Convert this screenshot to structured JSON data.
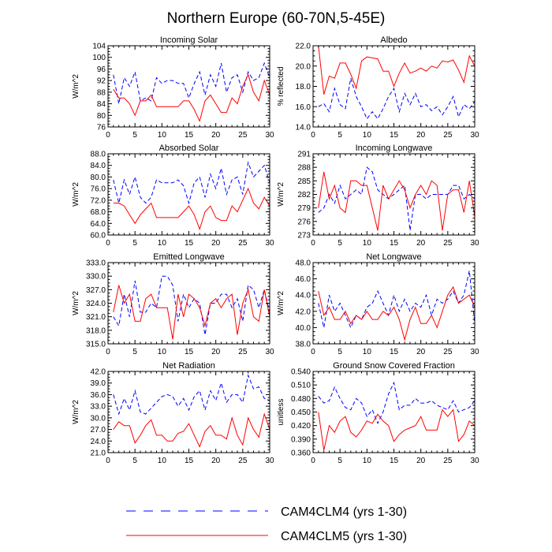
{
  "figure": {
    "title": "Northern Europe (60-70N,5-45E)",
    "legend": [
      {
        "label": "CAM4CLM4 (yrs 1-30)",
        "color": "#0000ff",
        "style": "dashed"
      },
      {
        "label": "CAM4CLM5 (yrs 1-30)",
        "color": "#ff0000",
        "style": "solid"
      }
    ]
  },
  "chart_data": [
    {
      "type": "line",
      "title": "Incoming Solar",
      "ylabel": "W/m^2",
      "xlim": [
        0,
        30
      ],
      "ylim": [
        76,
        104
      ],
      "xticks": [
        "0",
        "5",
        "10",
        "15",
        "20",
        "25",
        "30"
      ],
      "yticks": [
        "76",
        "80",
        "84",
        "88",
        "92",
        "96",
        "100",
        "104"
      ],
      "x": [
        1,
        2,
        3,
        4,
        5,
        6,
        7,
        8,
        9,
        10,
        11,
        12,
        13,
        14,
        15,
        16,
        17,
        18,
        19,
        20,
        21,
        22,
        23,
        24,
        25,
        26,
        27,
        28,
        29,
        30
      ],
      "series": [
        {
          "name": "CAM4CLM4 (yrs 1-30)",
          "values": [
            94,
            84,
            93,
            90,
            95,
            85,
            86,
            85,
            93,
            91,
            92,
            92,
            91,
            91,
            86,
            91,
            95,
            87,
            94,
            90,
            98,
            88,
            93,
            94,
            88,
            95,
            92,
            93,
            98,
            93
          ]
        },
        {
          "name": "CAM4CLM5 (yrs 1-30)",
          "values": [
            89,
            86,
            86,
            84,
            80,
            85,
            85,
            87,
            83,
            83,
            83,
            83,
            83,
            85,
            85,
            82,
            78,
            85,
            87,
            84,
            81,
            81,
            86,
            84,
            90,
            94,
            88,
            85,
            92,
            87
          ]
        }
      ]
    },
    {
      "type": "line",
      "title": "Albedo",
      "ylabel": "% reflected",
      "xlim": [
        0,
        30
      ],
      "ylim": [
        14.0,
        22.0
      ],
      "xticks": [
        "0",
        "5",
        "10",
        "15",
        "20",
        "25",
        "30"
      ],
      "yticks": [
        "14.0",
        "16.0",
        "18.0",
        "20.0",
        "22.0"
      ],
      "x": [
        1,
        2,
        3,
        4,
        5,
        6,
        7,
        8,
        9,
        10,
        11,
        12,
        13,
        14,
        15,
        16,
        17,
        18,
        19,
        20,
        21,
        22,
        23,
        24,
        25,
        26,
        27,
        28,
        29,
        30
      ],
      "series": [
        {
          "name": "CAM4CLM4 (yrs 1-30)",
          "values": [
            16.0,
            16.3,
            15.5,
            17.8,
            16.2,
            15.8,
            18.8,
            17.0,
            16.0,
            14.8,
            15.5,
            14.8,
            15.8,
            17.0,
            17.8,
            15.5,
            17.3,
            16.2,
            17.3,
            16.0,
            16.2,
            15.6,
            16.0,
            15.2,
            16.0,
            17.0,
            15.0,
            16.2,
            15.8,
            16.5
          ]
        },
        {
          "name": "CAM4CLM5 (yrs 1-30)",
          "values": [
            22.0,
            17.2,
            19.0,
            18.8,
            20.3,
            20.3,
            19.2,
            17.8,
            20.5,
            20.9,
            20.8,
            20.7,
            19.5,
            19.5,
            18.0,
            19.3,
            20.3,
            19.3,
            19.5,
            19.8,
            19.5,
            20.0,
            19.8,
            20.5,
            20.4,
            20.6,
            19.6,
            18.4,
            21.0,
            20.0
          ]
        }
      ]
    },
    {
      "type": "line",
      "title": "Absorbed Solar",
      "ylabel": "W/m^2",
      "xlim": [
        0,
        30
      ],
      "ylim": [
        60.0,
        88.0
      ],
      "xticks": [
        "0",
        "5",
        "10",
        "15",
        "20",
        "25",
        "30"
      ],
      "yticks": [
        "60.0",
        "64.0",
        "68.0",
        "72.0",
        "76.0",
        "80.0",
        "84.0",
        "88.0"
      ],
      "x": [
        1,
        2,
        3,
        4,
        5,
        6,
        7,
        8,
        9,
        10,
        11,
        12,
        13,
        14,
        15,
        16,
        17,
        18,
        19,
        20,
        21,
        22,
        23,
        24,
        25,
        26,
        27,
        28,
        29,
        30
      ],
      "series": [
        {
          "name": "CAM4CLM4 (yrs 1-30)",
          "values": [
            79,
            71,
            79,
            74,
            80,
            73,
            71,
            73,
            79,
            78,
            78,
            78,
            79,
            77,
            71,
            78,
            80,
            73,
            81,
            76,
            83,
            74,
            79,
            80,
            74,
            85,
            80,
            82,
            84,
            78
          ]
        },
        {
          "name": "CAM4CLM5 (yrs 1-30)",
          "values": [
            71,
            71,
            70,
            67,
            64,
            67,
            69,
            71,
            66,
            66,
            66,
            66,
            66,
            68,
            70,
            67,
            62,
            68,
            70,
            66,
            65,
            65,
            70,
            68,
            72,
            76,
            71,
            69,
            73,
            70
          ]
        }
      ]
    },
    {
      "type": "line",
      "title": "Incoming Longwave",
      "ylabel": "W/m^2",
      "xlim": [
        0,
        30
      ],
      "ylim": [
        273,
        291
      ],
      "xticks": [
        "0",
        "5",
        "10",
        "15",
        "20",
        "25",
        "30"
      ],
      "yticks": [
        "273",
        "276",
        "279",
        "282",
        "285",
        "288",
        "291"
      ],
      "x": [
        1,
        2,
        3,
        4,
        5,
        6,
        7,
        8,
        9,
        10,
        11,
        12,
        13,
        14,
        15,
        16,
        17,
        18,
        19,
        20,
        21,
        22,
        23,
        24,
        25,
        26,
        27,
        28,
        29,
        30
      ],
      "series": [
        {
          "name": "CAM4CLM4 (yrs 1-30)",
          "values": [
            278,
            279,
            282,
            280,
            284,
            281,
            282,
            283,
            282,
            288,
            287,
            283,
            282,
            281,
            282,
            283,
            284,
            274,
            282,
            282,
            281,
            282,
            282,
            282,
            282,
            284,
            284,
            281,
            282,
            281
          ]
        },
        {
          "name": "CAM4CLM5 (yrs 1-30)",
          "values": [
            279,
            287,
            281,
            284,
            279,
            278,
            285,
            285,
            284,
            284,
            279,
            274,
            284,
            281,
            283,
            285,
            283,
            279,
            282,
            284,
            282,
            285,
            284,
            274,
            282,
            283,
            283,
            278,
            285,
            277
          ]
        }
      ]
    },
    {
      "type": "line",
      "title": "Emitted Longwave",
      "ylabel": "W/m^2",
      "xlim": [
        0,
        30
      ],
      "ylim": [
        315.0,
        333.0
      ],
      "xticks": [
        "0",
        "5",
        "10",
        "15",
        "20",
        "25",
        "30"
      ],
      "yticks": [
        "315.0",
        "318.0",
        "321.0",
        "324.0",
        "327.0",
        "330.0",
        "333.0"
      ],
      "x": [
        1,
        2,
        3,
        4,
        5,
        6,
        7,
        8,
        9,
        10,
        11,
        12,
        13,
        14,
        15,
        16,
        17,
        18,
        19,
        20,
        21,
        22,
        23,
        24,
        25,
        26,
        27,
        28,
        29,
        30
      ],
      "series": [
        {
          "name": "CAM4CLM4 (yrs 1-30)",
          "values": [
            321,
            319,
            326,
            321,
            329,
            322,
            322,
            324,
            323,
            330,
            330,
            328,
            320,
            326,
            323,
            325,
            324,
            317,
            324,
            324,
            326,
            326,
            323,
            325,
            320,
            328,
            327,
            323,
            327,
            322
          ]
        },
        {
          "name": "CAM4CLM5 (yrs 1-30)",
          "values": [
            322,
            328,
            324,
            326,
            320,
            320,
            325,
            326,
            323,
            323,
            323,
            316,
            326,
            321,
            326,
            325,
            323,
            319,
            324,
            325,
            323,
            325,
            326,
            317,
            324,
            327,
            321,
            320,
            327,
            321
          ]
        }
      ]
    },
    {
      "type": "line",
      "title": "Net Longwave",
      "ylabel": "W/m^2",
      "xlim": [
        0,
        30
      ],
      "ylim": [
        38.0,
        48.0
      ],
      "xticks": [
        "0",
        "5",
        "10",
        "15",
        "20",
        "25",
        "30"
      ],
      "yticks": [
        "38.0",
        "40.0",
        "42.0",
        "44.0",
        "46.0",
        "48.0"
      ],
      "x": [
        1,
        2,
        3,
        4,
        5,
        6,
        7,
        8,
        9,
        10,
        11,
        12,
        13,
        14,
        15,
        16,
        17,
        18,
        19,
        20,
        21,
        22,
        23,
        24,
        25,
        26,
        27,
        28,
        29,
        30
      ],
      "series": [
        {
          "name": "CAM4CLM4 (yrs 1-30)",
          "values": [
            43.0,
            40.0,
            44.0,
            42.0,
            43.0,
            41.5,
            40.0,
            41.5,
            41.0,
            42.5,
            43.0,
            44.5,
            43.0,
            41.5,
            44.0,
            42.0,
            43.5,
            42.0,
            43.0,
            42.5,
            44.0,
            41.5,
            43.5,
            43.0,
            43.5,
            44.5,
            43.0,
            44.0,
            47.0,
            40.5
          ]
        },
        {
          "name": "CAM4CLM5 (yrs 1-30)",
          "values": [
            44.5,
            41.5,
            42.5,
            41.0,
            41.0,
            42.0,
            40.5,
            41.5,
            41.0,
            42.0,
            41.0,
            41.0,
            42.0,
            41.5,
            42.5,
            41.0,
            38.5,
            41.0,
            42.5,
            40.5,
            40.5,
            41.5,
            40.0,
            42.0,
            44.0,
            45.0,
            43.0,
            43.5,
            44.0,
            42.5
          ]
        }
      ]
    },
    {
      "type": "line",
      "title": "Net Radiation",
      "ylabel": "W/m^2",
      "xlim": [
        0,
        30
      ],
      "ylim": [
        21.0,
        42.0
      ],
      "xticks": [
        "0",
        "5",
        "10",
        "15",
        "20",
        "25",
        "30"
      ],
      "yticks": [
        "21.0",
        "24.0",
        "27.0",
        "30.0",
        "33.0",
        "36.0",
        "39.0",
        "42.0"
      ],
      "x": [
        1,
        2,
        3,
        4,
        5,
        6,
        7,
        8,
        9,
        10,
        11,
        12,
        13,
        14,
        15,
        16,
        17,
        18,
        19,
        20,
        21,
        22,
        23,
        24,
        25,
        26,
        27,
        28,
        29,
        30
      ],
      "series": [
        {
          "name": "CAM4CLM4 (yrs 1-30)",
          "values": [
            36.0,
            31.0,
            35.0,
            32.0,
            37.0,
            31.5,
            31.0,
            32.5,
            34.0,
            35.5,
            36.0,
            35.5,
            33.0,
            35.0,
            32.0,
            35.5,
            37.0,
            32.0,
            37.0,
            34.5,
            39.0,
            34.0,
            36.0,
            36.0,
            34.0,
            41.0,
            37.5,
            38.0,
            35.0,
            34.5
          ]
        },
        {
          "name": "CAM4CLM5 (yrs 1-30)",
          "values": [
            27.0,
            29.0,
            28.0,
            28.0,
            23.5,
            25.5,
            28.0,
            29.5,
            25.5,
            25.5,
            24.0,
            24.0,
            26.0,
            26.5,
            28.5,
            25.5,
            22.5,
            26.5,
            28.0,
            25.5,
            25.5,
            24.5,
            30.0,
            25.5,
            23.0,
            30.0,
            27.0,
            25.0,
            31.0,
            27.0
          ]
        }
      ]
    },
    {
      "type": "line",
      "title": "Ground Snow Covered Fraction",
      "ylabel": "unitless",
      "xlim": [
        0,
        30
      ],
      "ylim": [
        0.36,
        0.54
      ],
      "xticks": [
        "0",
        "5",
        "10",
        "15",
        "20",
        "25",
        "30"
      ],
      "yticks": [
        "0.360",
        "0.390",
        "0.420",
        "0.450",
        "0.480",
        "0.510",
        "0.540"
      ],
      "x": [
        1,
        2,
        3,
        4,
        5,
        6,
        7,
        8,
        9,
        10,
        11,
        12,
        13,
        14,
        15,
        16,
        17,
        18,
        19,
        20,
        21,
        22,
        23,
        24,
        25,
        26,
        27,
        28,
        29,
        30
      ],
      "series": [
        {
          "name": "CAM4CLM4 (yrs 1-30)",
          "values": [
            0.485,
            0.47,
            0.475,
            0.505,
            0.48,
            0.46,
            0.455,
            0.48,
            0.47,
            0.44,
            0.455,
            0.425,
            0.45,
            0.49,
            0.515,
            0.455,
            0.465,
            0.465,
            0.48,
            0.47,
            0.47,
            0.475,
            0.465,
            0.46,
            0.455,
            0.475,
            0.45,
            0.455,
            0.46,
            0.475
          ]
        },
        {
          "name": "CAM4CLM5 (yrs 1-30)",
          "values": [
            0.45,
            0.365,
            0.42,
            0.405,
            0.43,
            0.44,
            0.405,
            0.395,
            0.41,
            0.43,
            0.425,
            0.445,
            0.43,
            0.42,
            0.385,
            0.4,
            0.41,
            0.415,
            0.42,
            0.44,
            0.41,
            0.41,
            0.41,
            0.455,
            0.44,
            0.455,
            0.385,
            0.4,
            0.43,
            0.42
          ]
        }
      ]
    }
  ]
}
